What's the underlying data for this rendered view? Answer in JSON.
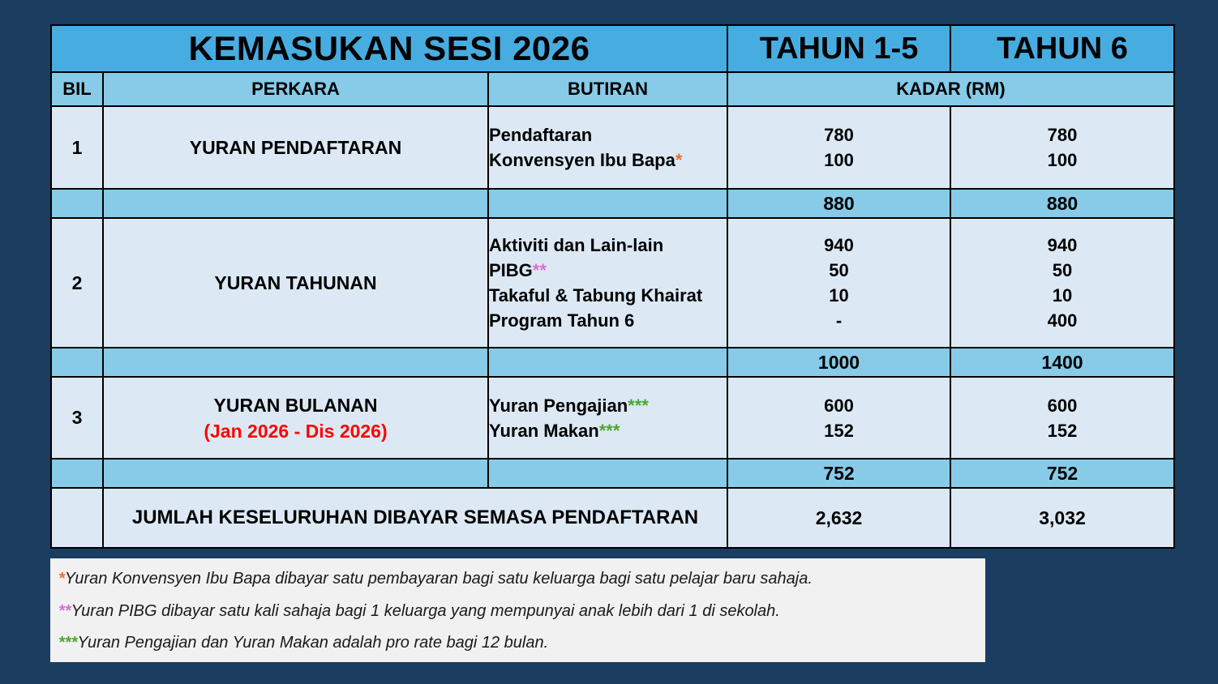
{
  "colors": {
    "page_bg": "#1B3D60",
    "header_blue": "#47ADE1",
    "subheader_blue": "#87CBE8",
    "row_light_blue": "#DCE9F5",
    "footnote_bg": "#F1F1F1",
    "red_note": "#FF0000",
    "star_orange": "#E97132",
    "star_violet": "#D86DD3",
    "star_green": "#4EA72E"
  },
  "table": {
    "title": "KEMASUKAN SESI 2026",
    "year_cols": {
      "t15": "TAHUN 1-5",
      "t6": "TAHUN 6"
    },
    "headers": {
      "bil": "BIL",
      "perkara": "PERKARA",
      "butiran": "BUTIRAN",
      "kadar": "KADAR (RM)"
    },
    "sections": [
      {
        "bil": "1",
        "perkara": [
          "YURAN PENDAFTARAN"
        ],
        "items": [
          {
            "label": "Pendaftaran",
            "stars": "",
            "t15": "780",
            "t6": "780"
          },
          {
            "label": "Konvensyen Ibu Bapa",
            "stars": "*",
            "t15": "100",
            "t6": "100"
          }
        ],
        "subtotal": {
          "t15": "880",
          "t6": "880"
        }
      },
      {
        "bil": "2",
        "perkara": [
          "YURAN TAHUNAN"
        ],
        "items": [
          {
            "label": "Aktiviti dan Lain-lain",
            "stars": "",
            "t15": "940",
            "t6": "940"
          },
          {
            "label": "PIBG",
            "stars": "**",
            "t15": "50",
            "t6": "50"
          },
          {
            "label": "Takaful & Tabung Khairat",
            "stars": "",
            "t15": "10",
            "t6": "10"
          },
          {
            "label": "Program Tahun 6",
            "stars": "",
            "t15": "-",
            "t6": "400"
          }
        ],
        "subtotal": {
          "t15": "1000",
          "t6": "1400"
        }
      },
      {
        "bil": "3",
        "perkara": [
          "YURAN BULANAN",
          "(Jan 2026 - Dis 2026)"
        ],
        "items": [
          {
            "label": "Yuran Pengajian",
            "stars": "***",
            "t15": "600",
            "t6": "600"
          },
          {
            "label": "Yuran Makan",
            "stars": "***",
            "t15": "152",
            "t6": "152"
          }
        ],
        "subtotal": {
          "t15": "752",
          "t6": "752"
        }
      }
    ],
    "total": {
      "label": "JUMLAH KESELURUHAN DIBAYAR SEMASA PENDAFTARAN",
      "t15": "2,632",
      "t6": "3,032"
    }
  },
  "footnotes": [
    {
      "stars": "*",
      "text": "Yuran Konvensyen Ibu Bapa dibayar satu pembayaran bagi satu keluarga bagi satu pelajar baru sahaja."
    },
    {
      "stars": "**",
      "text": "Yuran PIBG dibayar satu kali sahaja bagi 1 keluarga yang mempunyai anak lebih dari 1 di sekolah."
    },
    {
      "stars": "***",
      "text": "Yuran Pengajian dan Yuran Makan adalah pro rate bagi 12 bulan."
    }
  ]
}
